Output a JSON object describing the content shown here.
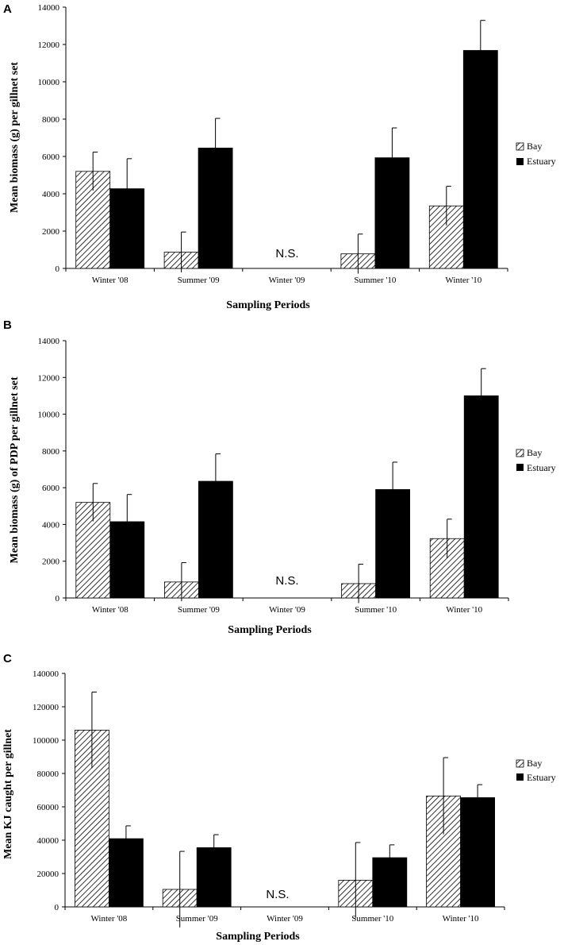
{
  "chart_data": [
    {
      "type": "bar",
      "panel_label": "A",
      "categories": [
        "Winter '08",
        "Summer '09",
        "Winter '09",
        "Summer '10",
        "Winter '10"
      ],
      "series": [
        {
          "name": "Bay",
          "pattern": "hatch",
          "values": [
            5200,
            870,
            null,
            780,
            3350
          ],
          "errors": [
            1030,
            1080,
            null,
            1060,
            1050
          ]
        },
        {
          "name": "Estuary",
          "pattern": "solid",
          "values": [
            4270,
            6450,
            null,
            5930,
            11680
          ],
          "errors": [
            1610,
            1590,
            null,
            1600,
            1610
          ]
        }
      ],
      "annotation": "N.S.",
      "annotation_category": "Winter '09",
      "xlabel": "Sampling Periods",
      "ylabel": "Mean biomass (g) per gillnet set",
      "ylim": [
        0,
        14000
      ],
      "yticks": [
        0,
        2000,
        4000,
        6000,
        8000,
        10000,
        12000,
        14000
      ],
      "ytick_labels": [
        "0",
        "2000",
        "4000",
        "6000",
        "8000",
        "10000",
        "12000",
        "14000"
      ],
      "legend_position": "right"
    },
    {
      "type": "bar",
      "panel_label": "B",
      "categories": [
        "Winter '08",
        "Summer '09",
        "Winter '09",
        "Summer '10",
        "Winter '10"
      ],
      "series": [
        {
          "name": "Bay",
          "pattern": "hatch",
          "values": [
            5200,
            870,
            null,
            780,
            3230
          ],
          "errors": [
            1030,
            1050,
            null,
            1060,
            1060
          ]
        },
        {
          "name": "Estuary",
          "pattern": "solid",
          "values": [
            4150,
            6350,
            null,
            5900,
            11000
          ],
          "errors": [
            1480,
            1490,
            null,
            1490,
            1480
          ]
        }
      ],
      "annotation": "N.S.",
      "annotation_category": "Winter '09",
      "xlabel": "Sampling Periods",
      "ylabel": "Mean biomass (g) of PDP per gillnet set",
      "ylim": [
        0,
        14000
      ],
      "yticks": [
        0,
        2000,
        4000,
        6000,
        8000,
        10000,
        12000,
        14000
      ],
      "ytick_labels": [
        "0",
        "2000",
        "4000",
        "6000",
        "8000",
        "10000",
        "12000",
        "14000"
      ],
      "legend_position": "right"
    },
    {
      "type": "bar",
      "panel_label": "C",
      "categories": [
        "Winter '08",
        "Summer '09",
        "Winter '09",
        "Summer '10",
        "Winter '10"
      ],
      "series": [
        {
          "name": "Bay",
          "pattern": "hatch",
          "values": [
            106000,
            10500,
            null,
            16000,
            66500
          ],
          "errors": [
            22800,
            22800,
            null,
            22600,
            23000
          ]
        },
        {
          "name": "Estuary",
          "pattern": "solid",
          "values": [
            40900,
            35500,
            null,
            29500,
            65500
          ],
          "errors": [
            7700,
            7800,
            null,
            7700,
            7800
          ]
        }
      ],
      "annotation": "N.S.",
      "annotation_category": "Winter '09",
      "xlabel": "Sampling Periods",
      "ylabel": "Mean KJ caught per gillnet",
      "ylim": [
        0,
        140000
      ],
      "yticks": [
        0,
        20000,
        40000,
        60000,
        80000,
        100000,
        120000,
        140000
      ],
      "ytick_labels": [
        "0",
        "20000",
        "40000",
        "60000",
        "80000",
        "100000",
        "120000",
        "140000"
      ],
      "legend_position": "right"
    }
  ]
}
